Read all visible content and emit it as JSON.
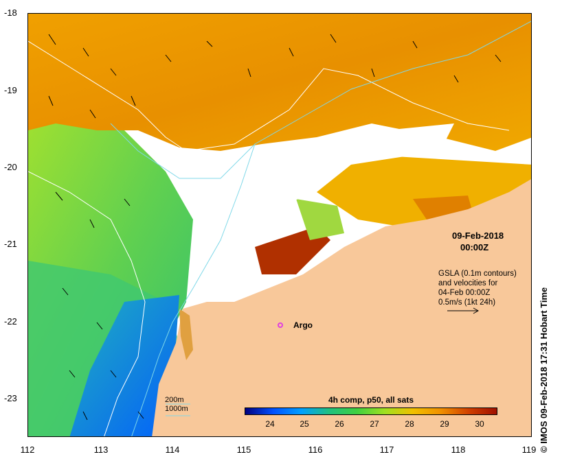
{
  "map": {
    "y_ticks": [
      "-18",
      "-19",
      "-20",
      "-21",
      "-22",
      "-23"
    ],
    "x_ticks": [
      "112",
      "113",
      "114",
      "115",
      "116",
      "117",
      "118",
      "119"
    ],
    "title_date": "09-Feb-2018",
    "title_time": "00:00Z",
    "gsla_note": [
      "GSLA (0.1m contours)",
      "and velocities for",
      "04-Feb 00:00Z",
      "0.5m/s (1kt 24h)"
    ],
    "argo_label": "Argo",
    "contour_legend": [
      "200m",
      "1000m"
    ],
    "colorbar_title": "4h comp, p50, all sats",
    "colorbar_ticks": [
      "24",
      "25",
      "26",
      "27",
      "28",
      "29",
      "30"
    ],
    "credit": "IMOS 09-Feb-2018 17:31 Hobart Time",
    "copyright_symbol": "©"
  },
  "colors": {
    "land": "#f8c89a",
    "cloud": "#ffffff",
    "contour_200": "#7fd8e8",
    "contour_1000": "#ffffff",
    "argo": "#e040e0",
    "colorbar": [
      "#000080",
      "#0050ff",
      "#00a0ff",
      "#20c080",
      "#40d040",
      "#a0e020",
      "#f0c000",
      "#f09000",
      "#d04000",
      "#a01000"
    ]
  }
}
